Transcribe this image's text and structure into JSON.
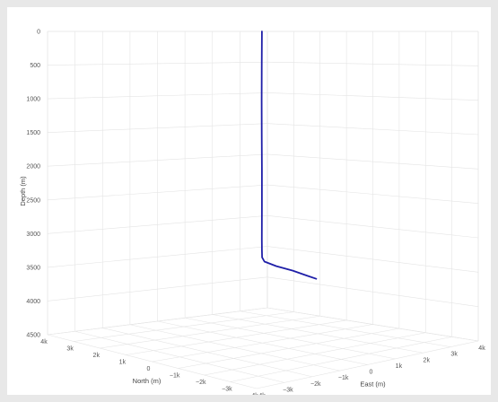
{
  "chart_data": {
    "type": "line3d",
    "title": "",
    "axes": {
      "depth": {
        "label": "Depth (m)",
        "range": [
          0,
          4500
        ],
        "reversed": true,
        "tick_values": [
          0,
          500,
          1000,
          1500,
          2000,
          2500,
          3000,
          3500,
          4000,
          4500
        ],
        "tick_labels": [
          "0",
          "500",
          "1000",
          "1500",
          "2000",
          "2500",
          "3000",
          "3500",
          "4000",
          "4500"
        ]
      },
      "north": {
        "label": "North (m)",
        "range": [
          -4000,
          4000
        ],
        "tick_values": [
          4000,
          3000,
          2000,
          1000,
          0,
          -1000,
          -2000,
          -3000,
          -4000
        ],
        "tick_labels": [
          "4k",
          "3k",
          "2k",
          "1k",
          "0",
          "−1k",
          "−2k",
          "−3k",
          "−4k"
        ]
      },
      "east": {
        "label": "East (m)",
        "range": [
          -4000,
          4000
        ],
        "tick_values": [
          -4000,
          -3000,
          -2000,
          -1000,
          0,
          1000,
          2000,
          3000,
          4000
        ],
        "tick_labels": [
          "−4k",
          "−3k",
          "−2k",
          "−1k",
          "0",
          "1k",
          "2k",
          "3k",
          "4k"
        ]
      }
    },
    "grid": true,
    "series": [
      {
        "name": "",
        "color": "#1f1fa8",
        "points": [
          {
            "north": 0,
            "east": 0,
            "depth": 0
          },
          {
            "north": 20,
            "east": 15,
            "depth": 500
          },
          {
            "north": 40,
            "east": 30,
            "depth": 1000
          },
          {
            "north": 60,
            "east": 50,
            "depth": 1500
          },
          {
            "north": 70,
            "east": 65,
            "depth": 2000
          },
          {
            "north": 80,
            "east": 75,
            "depth": 2500
          },
          {
            "north": 90,
            "east": 80,
            "depth": 3000
          },
          {
            "north": 100,
            "east": 90,
            "depth": 3150
          },
          {
            "north": 120,
            "east": 120,
            "depth": 3250
          },
          {
            "north": 170,
            "east": 260,
            "depth": 3300
          },
          {
            "north": 250,
            "east": 800,
            "depth": 3330
          },
          {
            "north": 320,
            "east": 1500,
            "depth": 3350
          },
          {
            "north": 380,
            "east": 2100,
            "depth": 3380
          },
          {
            "north": 420,
            "east": 2500,
            "depth": 3400
          }
        ]
      }
    ]
  }
}
